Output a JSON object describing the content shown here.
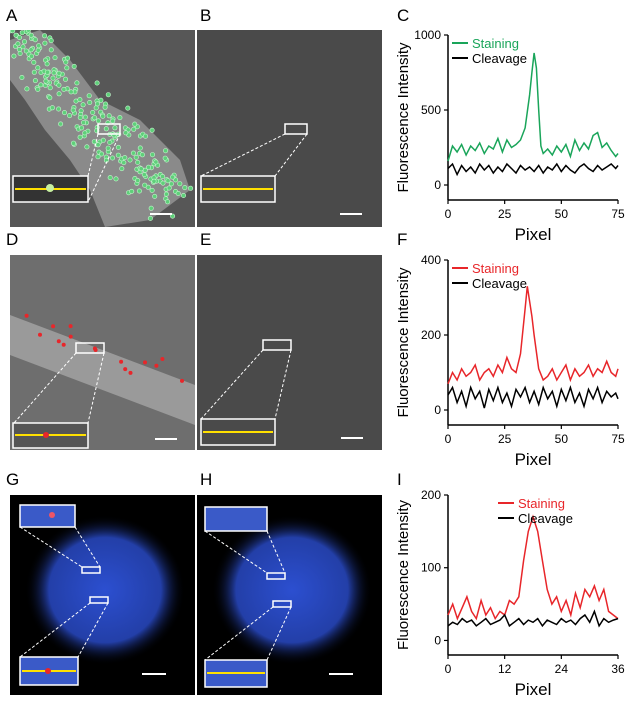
{
  "panels": {
    "A": "A",
    "B": "B",
    "C": "C",
    "D": "D",
    "E": "E",
    "F": "F",
    "G": "G",
    "H": "H",
    "I": "I"
  },
  "colors": {
    "staining_green": "#1aa55a",
    "staining_red": "#e8262a",
    "cleavage": "#000000",
    "profile_line": "#ffe000",
    "nucleus_blue": "#2c4fd0"
  },
  "chart_data": [
    {
      "type": "line",
      "panel": "C",
      "xlabel": "Pixel",
      "ylabel": "Fluorescence Intensity",
      "xlim": [
        0,
        75
      ],
      "ylim": [
        -100,
        1000
      ],
      "xticks": [
        0,
        25,
        50,
        75
      ],
      "yticks": [
        0,
        500,
        1000
      ],
      "legend": "top-left",
      "series": [
        {
          "name": "Staining",
          "color": "#1aa55a",
          "x": [
            0,
            2,
            4,
            6,
            8,
            10,
            12,
            14,
            16,
            18,
            20,
            22,
            24,
            26,
            28,
            30,
            32,
            34,
            36,
            37,
            38,
            39,
            40,
            41,
            42,
            44,
            46,
            48,
            50,
            52,
            54,
            56,
            58,
            60,
            62,
            64,
            66,
            68,
            70,
            72,
            74,
            75
          ],
          "y": [
            160,
            260,
            220,
            270,
            200,
            260,
            230,
            280,
            210,
            260,
            240,
            310,
            220,
            300,
            250,
            270,
            300,
            380,
            600,
            750,
            880,
            780,
            500,
            260,
            210,
            240,
            200,
            260,
            220,
            270,
            190,
            300,
            230,
            280,
            240,
            330,
            350,
            250,
            280,
            230,
            190,
            210
          ]
        },
        {
          "name": "Cleavage",
          "color": "#000000",
          "x": [
            0,
            2,
            4,
            6,
            8,
            10,
            12,
            14,
            16,
            18,
            20,
            22,
            24,
            26,
            28,
            30,
            32,
            34,
            36,
            38,
            40,
            42,
            44,
            46,
            48,
            50,
            52,
            54,
            56,
            58,
            60,
            62,
            64,
            66,
            68,
            70,
            72,
            74,
            75
          ],
          "y": [
            110,
            140,
            70,
            130,
            90,
            120,
            80,
            140,
            100,
            130,
            80,
            120,
            90,
            140,
            110,
            80,
            130,
            100,
            120,
            90,
            130,
            80,
            120,
            100,
            140,
            90,
            130,
            100,
            80,
            120,
            140,
            110,
            90,
            130,
            100,
            120,
            140,
            110,
            130
          ]
        }
      ]
    },
    {
      "type": "line",
      "panel": "F",
      "xlabel": "Pixel",
      "ylabel": "Fluorescence Intensity",
      "xlim": [
        0,
        75
      ],
      "ylim": [
        -40,
        400
      ],
      "xticks": [
        0,
        25,
        50,
        75
      ],
      "yticks": [
        0,
        200,
        400
      ],
      "legend": "top-left",
      "series": [
        {
          "name": "Staining",
          "color": "#e8262a",
          "x": [
            0,
            2,
            4,
            6,
            8,
            10,
            12,
            14,
            16,
            18,
            20,
            22,
            24,
            26,
            28,
            30,
            32,
            34,
            35,
            36,
            37,
            38,
            40,
            42,
            44,
            46,
            48,
            50,
            52,
            54,
            56,
            58,
            60,
            62,
            64,
            66,
            68,
            70,
            72,
            74,
            75
          ],
          "y": [
            70,
            100,
            80,
            110,
            90,
            100,
            120,
            80,
            100,
            110,
            90,
            120,
            100,
            140,
            110,
            100,
            150,
            270,
            330,
            290,
            250,
            200,
            110,
            80,
            90,
            110,
            80,
            100,
            120,
            80,
            110,
            90,
            100,
            120,
            90,
            110,
            100,
            130,
            100,
            90,
            110
          ]
        },
        {
          "name": "Cleavage",
          "color": "#000000",
          "x": [
            0,
            2,
            4,
            6,
            8,
            10,
            12,
            14,
            16,
            18,
            20,
            22,
            24,
            26,
            28,
            30,
            32,
            34,
            36,
            38,
            40,
            42,
            44,
            46,
            48,
            50,
            52,
            54,
            56,
            58,
            60,
            62,
            64,
            66,
            68,
            70,
            72,
            74,
            75
          ],
          "y": [
            40,
            60,
            20,
            50,
            10,
            60,
            30,
            50,
            5,
            55,
            25,
            60,
            20,
            45,
            10,
            55,
            35,
            60,
            20,
            50,
            15,
            60,
            30,
            50,
            10,
            55,
            25,
            60,
            20,
            45,
            10,
            55,
            30,
            60,
            20,
            50,
            35,
            45,
            30
          ]
        }
      ]
    },
    {
      "type": "line",
      "panel": "I",
      "xlabel": "Pixel",
      "ylabel": "Fluorescence Intensity",
      "xlim": [
        0,
        36
      ],
      "ylim": [
        -20,
        200
      ],
      "xticks": [
        0,
        12,
        24,
        36
      ],
      "yticks": [
        0,
        100,
        200
      ],
      "legend": "top-right",
      "series": [
        {
          "name": "Staining",
          "color": "#e8262a",
          "x": [
            0,
            1,
            2,
            3,
            4,
            5,
            6,
            7,
            8,
            9,
            10,
            11,
            12,
            13,
            14,
            15,
            16,
            17,
            18,
            19,
            20,
            21,
            22,
            23,
            24,
            25,
            26,
            27,
            28,
            29,
            30,
            31,
            32,
            33,
            34,
            35,
            36
          ],
          "y": [
            35,
            50,
            30,
            45,
            60,
            40,
            30,
            55,
            35,
            45,
            30,
            40,
            35,
            55,
            50,
            60,
            110,
            150,
            170,
            150,
            110,
            70,
            50,
            60,
            40,
            55,
            35,
            65,
            45,
            70,
            60,
            75,
            55,
            70,
            40,
            35,
            30
          ]
        },
        {
          "name": "Cleavage",
          "color": "#000000",
          "x": [
            0,
            1,
            2,
            3,
            4,
            5,
            6,
            7,
            8,
            9,
            10,
            11,
            12,
            13,
            14,
            15,
            16,
            17,
            18,
            19,
            20,
            21,
            22,
            23,
            24,
            25,
            26,
            27,
            28,
            29,
            30,
            31,
            32,
            33,
            34,
            35,
            36
          ],
          "y": [
            20,
            25,
            22,
            30,
            25,
            28,
            20,
            25,
            30,
            22,
            25,
            28,
            35,
            20,
            25,
            30,
            22,
            28,
            25,
            30,
            20,
            28,
            25,
            22,
            30,
            25,
            28,
            22,
            30,
            35,
            25,
            40,
            20,
            30,
            25,
            28,
            30
          ]
        }
      ]
    }
  ]
}
